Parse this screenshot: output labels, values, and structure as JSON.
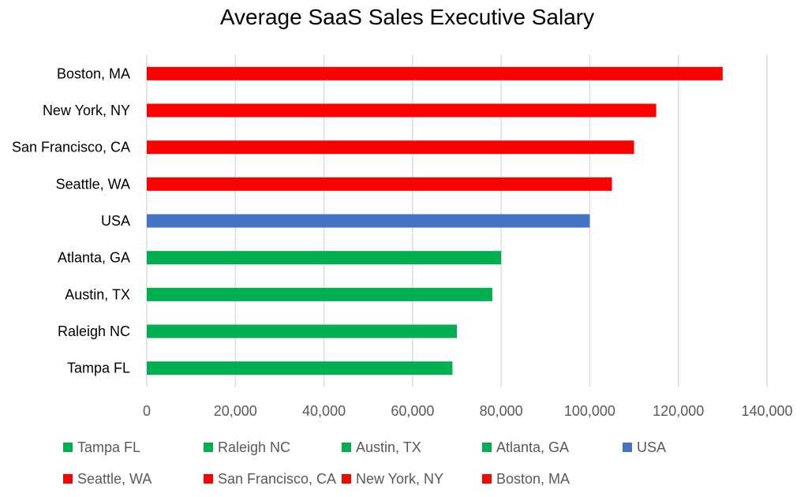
{
  "chart_data": {
    "type": "bar",
    "orientation": "horizontal",
    "title": "Average SaaS Sales Executive Salary",
    "xlabel": "",
    "ylabel": "",
    "xlim": [
      0,
      140000
    ],
    "x_ticks": [
      "0",
      "20,000",
      "40,000",
      "60,000",
      "80,000",
      "100,000",
      "120,000",
      "140,000"
    ],
    "grid": "vertical",
    "legend_position": "bottom",
    "categories": [
      "Tampa FL",
      "Raleigh NC",
      "Austin, TX",
      "Atlanta, GA",
      "USA",
      "Seattle, WA",
      "San Francisco, CA",
      "New York, NY",
      "Boston, MA"
    ],
    "values": [
      69000,
      70000,
      78000,
      80000,
      100000,
      105000,
      110000,
      115000,
      130000
    ],
    "colors": [
      "#00b050",
      "#00b050",
      "#00b050",
      "#00b050",
      "#4472c4",
      "#ff0000",
      "#ff0000",
      "#ff0000",
      "#ff0000"
    ],
    "legend": [
      {
        "name": "Tampa FL",
        "color": "#00b050"
      },
      {
        "name": "Raleigh NC",
        "color": "#00b050"
      },
      {
        "name": "Austin, TX",
        "color": "#00b050"
      },
      {
        "name": "Atlanta, GA",
        "color": "#00b050"
      },
      {
        "name": "USA",
        "color": "#4472c4"
      },
      {
        "name": "Seattle, WA",
        "color": "#ff0000"
      },
      {
        "name": "San Francisco, CA",
        "color": "#ff0000"
      },
      {
        "name": "New York, NY",
        "color": "#ff0000"
      },
      {
        "name": "Boston, MA",
        "color": "#ff0000"
      }
    ],
    "gridline_color": "#d9d9d9"
  }
}
